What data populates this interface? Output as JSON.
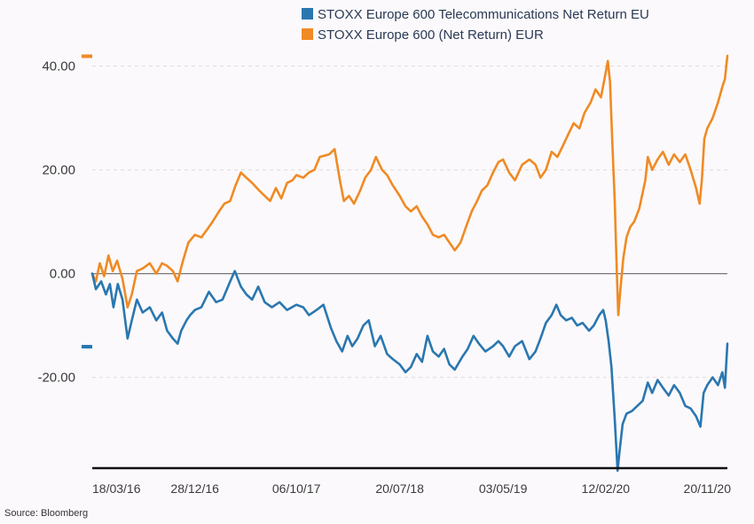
{
  "source": "Source: Bloomberg",
  "chart_data": {
    "type": "line",
    "title": "",
    "xlabel": "",
    "ylabel": "",
    "ylim": [
      -37.5,
      42.5
    ],
    "y_ticks": [
      40,
      20,
      0,
      -20
    ],
    "y_tick_labels": [
      "40.00",
      "20.00",
      "0.00",
      "-20.00"
    ],
    "x_tick_labels": [
      "18/03/16",
      "28/12/16",
      "06/10/17",
      "20/07/18",
      "03/05/19",
      "12/02/20",
      "20/11/20"
    ],
    "x_tick_dates": [
      "2016-03-18",
      "2016-12-28",
      "2017-10-06",
      "2018-07-20",
      "2019-05-03",
      "2020-02-12",
      "2020-11-20"
    ],
    "x_range": [
      "2016-03-18",
      "2021-01-15"
    ],
    "grid": "horizontal dashed",
    "zero_line": true,
    "legend": "top",
    "colors": {
      "telecom": "#2a77b0",
      "stoxx600": "#f08a24",
      "axis": "#111111",
      "grid": "#dddddd",
      "zero": "#777777"
    },
    "series": [
      {
        "name": "STOXX Europe 600 Telecommunications Net Return EU",
        "color": "#2a77b0",
        "points": [
          [
            "2016-03-18",
            0
          ],
          [
            "2016-03-28",
            -3
          ],
          [
            "2016-04-12",
            -1.5
          ],
          [
            "2016-04-25",
            -4
          ],
          [
            "2016-05-06",
            -2
          ],
          [
            "2016-05-16",
            -6.5
          ],
          [
            "2016-05-28",
            -2
          ],
          [
            "2016-06-10",
            -5
          ],
          [
            "2016-06-24",
            -12.5
          ],
          [
            "2016-07-06",
            -9
          ],
          [
            "2016-07-20",
            -5
          ],
          [
            "2016-08-05",
            -7.5
          ],
          [
            "2016-08-25",
            -6.5
          ],
          [
            "2016-09-12",
            -9
          ],
          [
            "2016-09-28",
            -7.5
          ],
          [
            "2016-10-12",
            -11
          ],
          [
            "2016-10-28",
            -12.5
          ],
          [
            "2016-11-10",
            -13.5
          ],
          [
            "2016-11-20",
            -11
          ],
          [
            "2016-12-05",
            -9
          ],
          [
            "2016-12-15",
            -8
          ],
          [
            "2016-12-28",
            -7
          ],
          [
            "2017-01-15",
            -6.5
          ],
          [
            "2017-02-05",
            -3.5
          ],
          [
            "2017-02-25",
            -5.5
          ],
          [
            "2017-03-15",
            -5
          ],
          [
            "2017-04-05",
            -1.5
          ],
          [
            "2017-04-18",
            0.5
          ],
          [
            "2017-05-05",
            -2.5
          ],
          [
            "2017-05-20",
            -4
          ],
          [
            "2017-06-05",
            -5
          ],
          [
            "2017-06-22",
            -2.5
          ],
          [
            "2017-07-10",
            -5.5
          ],
          [
            "2017-07-30",
            -6.5
          ],
          [
            "2017-08-20",
            -5.5
          ],
          [
            "2017-09-10",
            -7
          ],
          [
            "2017-10-06",
            -6
          ],
          [
            "2017-10-25",
            -6.5
          ],
          [
            "2017-11-10",
            -8
          ],
          [
            "2017-12-01",
            -7
          ],
          [
            "2017-12-20",
            -6
          ],
          [
            "2018-01-10",
            -10.5
          ],
          [
            "2018-01-25",
            -13
          ],
          [
            "2018-02-10",
            -15
          ],
          [
            "2018-02-25",
            -12
          ],
          [
            "2018-03-10",
            -14
          ],
          [
            "2018-03-25",
            -12.5
          ],
          [
            "2018-04-10",
            -10
          ],
          [
            "2018-04-25",
            -9
          ],
          [
            "2018-05-12",
            -14
          ],
          [
            "2018-05-28",
            -12
          ],
          [
            "2018-06-15",
            -15.5
          ],
          [
            "2018-07-01",
            -16.5
          ],
          [
            "2018-07-20",
            -17.5
          ],
          [
            "2018-08-05",
            -19
          ],
          [
            "2018-08-20",
            -18
          ],
          [
            "2018-09-05",
            -15.5
          ],
          [
            "2018-09-20",
            -17
          ],
          [
            "2018-10-05",
            -12
          ],
          [
            "2018-10-20",
            -15
          ],
          [
            "2018-11-05",
            -16
          ],
          [
            "2018-11-20",
            -14.5
          ],
          [
            "2018-12-05",
            -17.5
          ],
          [
            "2018-12-20",
            -18.5
          ],
          [
            "2019-01-10",
            -16
          ],
          [
            "2019-01-25",
            -14.5
          ],
          [
            "2019-02-10",
            -12
          ],
          [
            "2019-02-25",
            -13.5
          ],
          [
            "2019-03-15",
            -15
          ],
          [
            "2019-04-05",
            -14
          ],
          [
            "2019-04-20",
            -13
          ],
          [
            "2019-05-03",
            -14
          ],
          [
            "2019-05-20",
            -16
          ],
          [
            "2019-06-05",
            -14
          ],
          [
            "2019-06-25",
            -13
          ],
          [
            "2019-07-15",
            -16.5
          ],
          [
            "2019-08-01",
            -15
          ],
          [
            "2019-08-15",
            -12.5
          ],
          [
            "2019-08-30",
            -9.5
          ],
          [
            "2019-09-15",
            -8
          ],
          [
            "2019-09-28",
            -6
          ],
          [
            "2019-10-10",
            -8
          ],
          [
            "2019-10-25",
            -9
          ],
          [
            "2019-11-10",
            -8.5
          ],
          [
            "2019-11-25",
            -10
          ],
          [
            "2019-12-10",
            -9.5
          ],
          [
            "2019-12-28",
            -11
          ],
          [
            "2020-01-10",
            -10
          ],
          [
            "2020-01-25",
            -8
          ],
          [
            "2020-02-05",
            -7
          ],
          [
            "2020-02-12",
            -9
          ],
          [
            "2020-02-20",
            -13
          ],
          [
            "2020-02-28",
            -18
          ],
          [
            "2020-03-08",
            -28
          ],
          [
            "2020-03-16",
            -38
          ],
          [
            "2020-03-22",
            -34
          ],
          [
            "2020-03-30",
            -29
          ],
          [
            "2020-04-10",
            -27
          ],
          [
            "2020-04-25",
            -26.5
          ],
          [
            "2020-05-10",
            -25.5
          ],
          [
            "2020-05-25",
            -24.5
          ],
          [
            "2020-06-08",
            -21
          ],
          [
            "2020-06-20",
            -23
          ],
          [
            "2020-07-05",
            -20.5
          ],
          [
            "2020-07-20",
            -22
          ],
          [
            "2020-08-05",
            -23.5
          ],
          [
            "2020-08-20",
            -21.5
          ],
          [
            "2020-09-05",
            -23
          ],
          [
            "2020-09-20",
            -25.5
          ],
          [
            "2020-10-05",
            -26
          ],
          [
            "2020-10-20",
            -27.5
          ],
          [
            "2020-11-01",
            -29.5
          ],
          [
            "2020-11-10",
            -23
          ],
          [
            "2020-11-20",
            -21.5
          ],
          [
            "2020-12-05",
            -20
          ],
          [
            "2020-12-20",
            -21.5
          ],
          [
            "2021-01-01",
            -19
          ],
          [
            "2021-01-08",
            -22
          ],
          [
            "2021-01-15",
            -13.5
          ]
        ]
      },
      {
        "name": "STOXX Europe 600 (Net Return) EUR",
        "color": "#f08a24",
        "points": [
          [
            "2016-03-18",
            0
          ],
          [
            "2016-03-28",
            -1.5
          ],
          [
            "2016-04-08",
            2
          ],
          [
            "2016-04-20",
            -0.5
          ],
          [
            "2016-05-02",
            3.5
          ],
          [
            "2016-05-14",
            0.5
          ],
          [
            "2016-05-26",
            2.5
          ],
          [
            "2016-06-10",
            -1
          ],
          [
            "2016-06-24",
            -6.5
          ],
          [
            "2016-07-06",
            -4
          ],
          [
            "2016-07-20",
            0.5
          ],
          [
            "2016-08-05",
            1
          ],
          [
            "2016-08-25",
            2
          ],
          [
            "2016-09-12",
            0
          ],
          [
            "2016-09-28",
            2
          ],
          [
            "2016-10-12",
            1.5
          ],
          [
            "2016-10-28",
            0.5
          ],
          [
            "2016-11-10",
            -1.5
          ],
          [
            "2016-11-25",
            2.5
          ],
          [
            "2016-12-10",
            6
          ],
          [
            "2016-12-28",
            7.5
          ],
          [
            "2017-01-15",
            7
          ],
          [
            "2017-01-31",
            8.5
          ],
          [
            "2017-02-15",
            10
          ],
          [
            "2017-03-05",
            12
          ],
          [
            "2017-03-20",
            13.5
          ],
          [
            "2017-04-05",
            14
          ],
          [
            "2017-04-20",
            17
          ],
          [
            "2017-05-05",
            19.5
          ],
          [
            "2017-05-20",
            18.5
          ],
          [
            "2017-06-05",
            17.5
          ],
          [
            "2017-06-25",
            16
          ],
          [
            "2017-07-10",
            15
          ],
          [
            "2017-07-25",
            14
          ],
          [
            "2017-08-10",
            16.5
          ],
          [
            "2017-08-25",
            14.5
          ],
          [
            "2017-09-10",
            17.5
          ],
          [
            "2017-09-25",
            18
          ],
          [
            "2017-10-06",
            19
          ],
          [
            "2017-10-25",
            18.5
          ],
          [
            "2017-11-10",
            19.5
          ],
          [
            "2017-11-25",
            20
          ],
          [
            "2017-12-10",
            22.5
          ],
          [
            "2018-01-05",
            23
          ],
          [
            "2018-01-20",
            24
          ],
          [
            "2018-02-05",
            17.5
          ],
          [
            "2018-02-15",
            14
          ],
          [
            "2018-03-01",
            15
          ],
          [
            "2018-03-15",
            13.5
          ],
          [
            "2018-04-01",
            16
          ],
          [
            "2018-04-15",
            18.5
          ],
          [
            "2018-05-01",
            20
          ],
          [
            "2018-05-15",
            22.5
          ],
          [
            "2018-06-01",
            20
          ],
          [
            "2018-06-15",
            19
          ],
          [
            "2018-07-01",
            17
          ],
          [
            "2018-07-20",
            15
          ],
          [
            "2018-08-05",
            13
          ],
          [
            "2018-08-20",
            12
          ],
          [
            "2018-09-05",
            13
          ],
          [
            "2018-09-20",
            11
          ],
          [
            "2018-10-05",
            9.5
          ],
          [
            "2018-10-20",
            7.5
          ],
          [
            "2018-11-05",
            7
          ],
          [
            "2018-11-20",
            7.5
          ],
          [
            "2018-12-05",
            6
          ],
          [
            "2018-12-20",
            4.5
          ],
          [
            "2019-01-05",
            6
          ],
          [
            "2019-01-20",
            9
          ],
          [
            "2019-02-05",
            12
          ],
          [
            "2019-02-20",
            14
          ],
          [
            "2019-03-05",
            16
          ],
          [
            "2019-03-20",
            17
          ],
          [
            "2019-04-05",
            19.5
          ],
          [
            "2019-04-20",
            21.5
          ],
          [
            "2019-05-03",
            22
          ],
          [
            "2019-05-20",
            19.5
          ],
          [
            "2019-06-05",
            18
          ],
          [
            "2019-06-25",
            21
          ],
          [
            "2019-07-15",
            22
          ],
          [
            "2019-08-01",
            21
          ],
          [
            "2019-08-15",
            18.5
          ],
          [
            "2019-08-30",
            20
          ],
          [
            "2019-09-15",
            23.5
          ],
          [
            "2019-10-01",
            22.5
          ],
          [
            "2019-10-15",
            24.5
          ],
          [
            "2019-11-01",
            27
          ],
          [
            "2019-11-15",
            29
          ],
          [
            "2019-12-01",
            28
          ],
          [
            "2019-12-15",
            31
          ],
          [
            "2020-01-01",
            33
          ],
          [
            "2020-01-15",
            35.5
          ],
          [
            "2020-01-30",
            34
          ],
          [
            "2020-02-10",
            38
          ],
          [
            "2020-02-18",
            41
          ],
          [
            "2020-02-24",
            37
          ],
          [
            "2020-03-01",
            26
          ],
          [
            "2020-03-08",
            14
          ],
          [
            "2020-03-14",
            0
          ],
          [
            "2020-03-18",
            -8
          ],
          [
            "2020-03-24",
            -3
          ],
          [
            "2020-04-01",
            3
          ],
          [
            "2020-04-10",
            7
          ],
          [
            "2020-04-20",
            9
          ],
          [
            "2020-05-01",
            10
          ],
          [
            "2020-05-15",
            12.5
          ],
          [
            "2020-06-01",
            18
          ],
          [
            "2020-06-08",
            22.5
          ],
          [
            "2020-06-20",
            20
          ],
          [
            "2020-07-05",
            22
          ],
          [
            "2020-07-20",
            23.5
          ],
          [
            "2020-08-05",
            21
          ],
          [
            "2020-08-20",
            23
          ],
          [
            "2020-09-05",
            21.5
          ],
          [
            "2020-09-20",
            23
          ],
          [
            "2020-10-05",
            20
          ],
          [
            "2020-10-20",
            16.5
          ],
          [
            "2020-10-30",
            13.5
          ],
          [
            "2020-11-05",
            18
          ],
          [
            "2020-11-12",
            26
          ],
          [
            "2020-11-20",
            28
          ],
          [
            "2020-12-05",
            30
          ],
          [
            "2020-12-20",
            33
          ],
          [
            "2021-01-01",
            36
          ],
          [
            "2021-01-08",
            37.5
          ],
          [
            "2021-01-15",
            42
          ]
        ]
      }
    ]
  }
}
